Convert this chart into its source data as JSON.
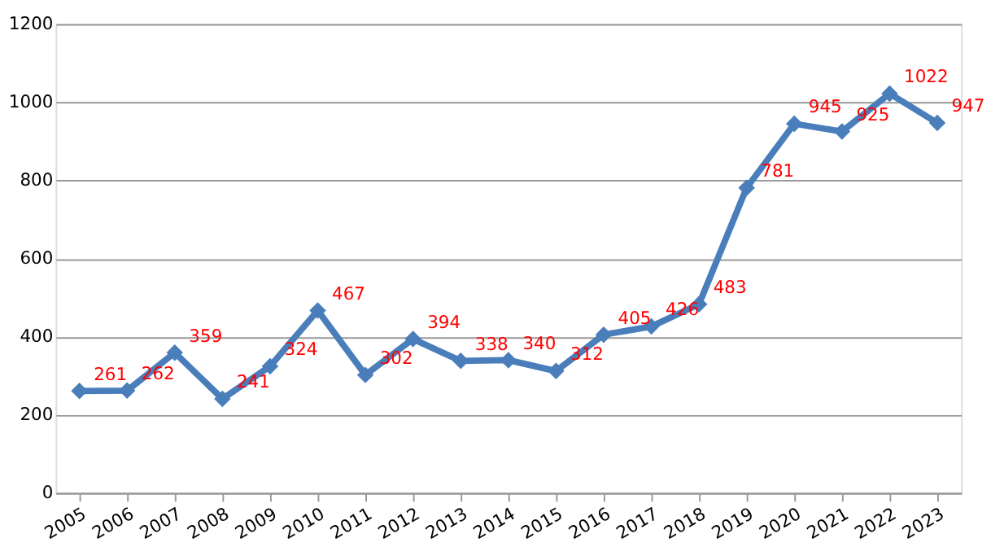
{
  "chart_data": {
    "type": "line",
    "categories": [
      "2005",
      "2006",
      "2007",
      "2008",
      "2009",
      "2010",
      "2011",
      "2012",
      "2013",
      "2014",
      "2015",
      "2016",
      "2017",
      "2018",
      "2019",
      "2020",
      "2021",
      "2022",
      "2023"
    ],
    "series": [
      {
        "color": "#4a7ebb",
        "values": [
          261,
          262,
          359,
          241,
          324,
          467,
          302,
          394,
          338,
          340,
          312,
          405,
          426,
          483,
          781,
          945,
          925,
          1022,
          947
        ]
      }
    ],
    "ylim": [
      0,
      1200
    ],
    "yticks": [
      0,
      200,
      400,
      600,
      800,
      1000,
      1200
    ],
    "grid": "y",
    "marker": "diamond",
    "line_style": "solid",
    "data_labels": true
  }
}
